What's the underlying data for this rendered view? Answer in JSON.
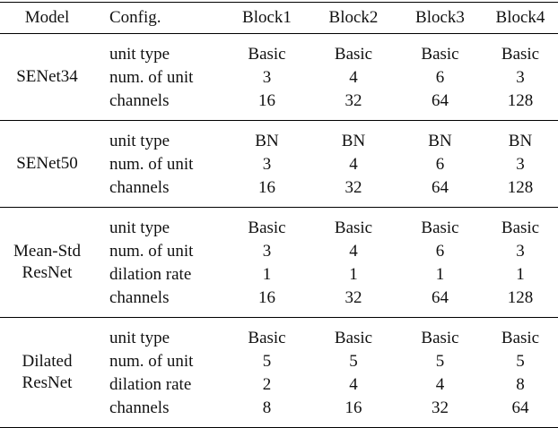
{
  "header": [
    "Model",
    "Config.",
    "Block1",
    "Block2",
    "Block3",
    "Block4"
  ],
  "groups": [
    {
      "model": [
        "SENet34"
      ],
      "rows": [
        {
          "config": "unit type",
          "values": [
            "Basic",
            "Basic",
            "Basic",
            "Basic"
          ]
        },
        {
          "config": "num. of unit",
          "values": [
            "3",
            "4",
            "6",
            "3"
          ]
        },
        {
          "config": "channels",
          "values": [
            "16",
            "32",
            "64",
            "128"
          ]
        }
      ]
    },
    {
      "model": [
        "SENet50"
      ],
      "rows": [
        {
          "config": "unit type",
          "values": [
            "BN",
            "BN",
            "BN",
            "BN"
          ]
        },
        {
          "config": "num. of unit",
          "values": [
            "3",
            "4",
            "6",
            "3"
          ]
        },
        {
          "config": "channels",
          "values": [
            "16",
            "32",
            "64",
            "128"
          ]
        }
      ]
    },
    {
      "model": [
        "Mean-Std",
        "ResNet"
      ],
      "rows": [
        {
          "config": "unit type",
          "values": [
            "Basic",
            "Basic",
            "Basic",
            "Basic"
          ]
        },
        {
          "config": "num. of unit",
          "values": [
            "3",
            "4",
            "6",
            "3"
          ]
        },
        {
          "config": "dilation rate",
          "values": [
            "1",
            "1",
            "1",
            "1"
          ]
        },
        {
          "config": "channels",
          "values": [
            "16",
            "32",
            "64",
            "128"
          ]
        }
      ]
    },
    {
      "model": [
        "Dilated",
        "ResNet"
      ],
      "rows": [
        {
          "config": "unit type",
          "values": [
            "Basic",
            "Basic",
            "Basic",
            "Basic"
          ]
        },
        {
          "config": "num. of unit",
          "values": [
            "5",
            "5",
            "5",
            "5"
          ]
        },
        {
          "config": "dilation rate",
          "values": [
            "2",
            "4",
            "4",
            "8"
          ]
        },
        {
          "config": "channels",
          "values": [
            "8",
            "16",
            "32",
            "64"
          ]
        }
      ]
    }
  ]
}
